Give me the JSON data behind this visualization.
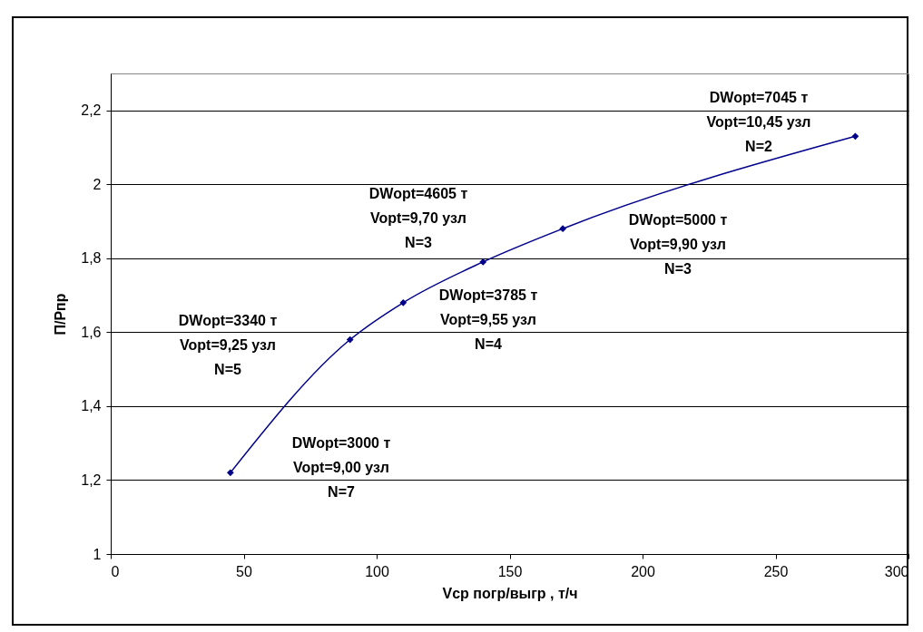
{
  "chart_data": {
    "type": "line",
    "xlabel": "Vср погр/выгр , т/ч",
    "ylabel": "П/Рпр",
    "x": [
      45,
      90,
      110,
      140,
      170,
      280
    ],
    "series": [
      {
        "color": "#00008b",
        "values": [
          1.22,
          1.58,
          1.68,
          1.79,
          1.88,
          2.13
        ]
      }
    ],
    "xlim": [
      0,
      300
    ],
    "xticks": [
      0,
      50,
      100,
      150,
      200,
      250,
      300
    ],
    "ylim": [
      1,
      2.3
    ],
    "yticks": [
      1,
      {
        "value": 1.2,
        "label": "1,2"
      },
      {
        "value": 1.4,
        "label": "1,4"
      },
      {
        "value": 1.6,
        "label": "1,6"
      },
      {
        "value": 1.8,
        "label": "1,8"
      },
      2,
      {
        "value": 2.2,
        "label": "2,2"
      }
    ],
    "grid": "y",
    "marker": "diamond",
    "line_style": "solid",
    "annotations": [
      "DWopt=3000 т\nVopt=9,00 узл\nN=7",
      "DWopt=3340 т\nVopt=9,25 узл\nN=5",
      "DWopt=4605 т\nVopt=9,70 узл\nN=3",
      "DWopt=3785 т\nVopt=9,55 узл\nN=4",
      "DWopt=5000 т\nVopt=9,90 узл\nN=3",
      "DWopt=7045 т\nVopt=10,45 узл\nN=2"
    ]
  }
}
